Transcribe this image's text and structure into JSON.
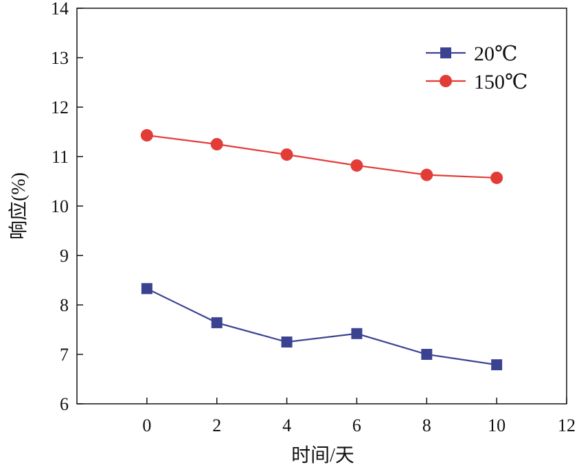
{
  "chart_data": {
    "type": "line",
    "title": "",
    "xlabel": "时间/天",
    "ylabel": "响应(%)",
    "xlim": [
      -2,
      12
    ],
    "ylim": [
      6,
      14
    ],
    "xticks": [
      0,
      2,
      4,
      6,
      8,
      10,
      12
    ],
    "yticks": [
      6,
      7,
      8,
      9,
      10,
      11,
      12,
      13,
      14
    ],
    "grid": false,
    "legend_position": "top-right",
    "x": [
      0,
      2,
      4,
      6,
      8,
      10
    ],
    "series": [
      {
        "name": "20℃",
        "marker": "square",
        "color": "#3b4391",
        "values": [
          8.33,
          7.64,
          7.25,
          7.42,
          7.0,
          6.79
        ]
      },
      {
        "name": "150℃",
        "marker": "circle",
        "color": "#e33b36",
        "values": [
          11.43,
          11.25,
          11.04,
          10.82,
          10.63,
          10.57
        ]
      }
    ]
  }
}
